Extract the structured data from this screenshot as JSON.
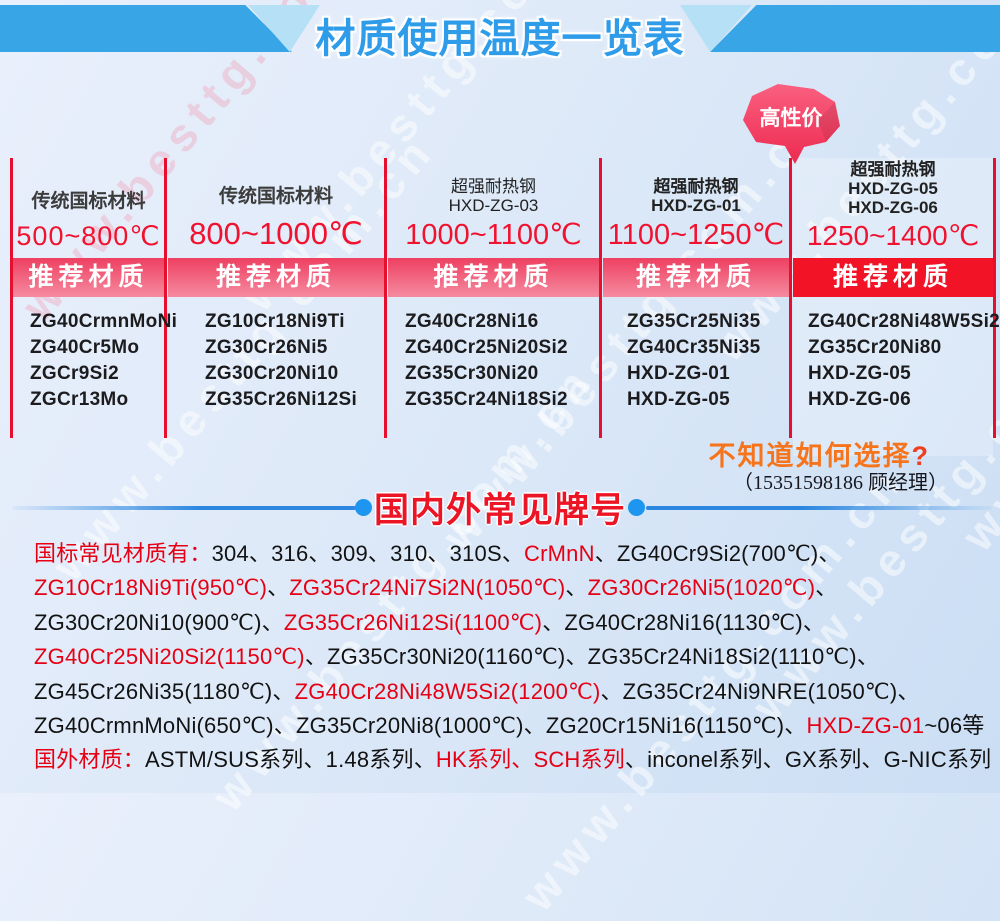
{
  "watermark": {
    "text": "www.besttg.com.cn"
  },
  "header": {
    "title": "材质使用温度一览表"
  },
  "badge": {
    "label": "高性价"
  },
  "table": {
    "band_label": "推荐材质",
    "columns": [
      {
        "titles": [
          "传统国标材料"
        ],
        "temp": "500~800℃",
        "materials": [
          "ZG40CrmnMoNi",
          "ZG40Cr5Mo",
          "ZGCr9Si2",
          "ZGCr13Mo"
        ]
      },
      {
        "titles": [
          "传统国标材料"
        ],
        "temp": "800~1000℃",
        "materials": [
          "ZG10Cr18Ni9Ti",
          "ZG30Cr26Ni5",
          "ZG30Cr20Ni10",
          "ZG35Cr26Ni12Si"
        ]
      },
      {
        "titles": [
          "超强耐热钢",
          "HXD-ZG-03"
        ],
        "temp": "1000~1100℃",
        "materials": [
          "ZG40Cr28Ni16",
          "ZG40Cr25Ni20Si2",
          "ZG35Cr30Ni20",
          "ZG35Cr24Ni18Si2"
        ]
      },
      {
        "titles": [
          "超强耐热钢",
          "HXD-ZG-01"
        ],
        "temp": "1100~1250℃",
        "materials": [
          "ZG35Cr25Ni35",
          "ZG40Cr35Ni35",
          "HXD-ZG-01",
          "HXD-ZG-05"
        ]
      },
      {
        "titles": [
          "超强耐热钢",
          "HXD-ZG-05",
          "HXD-ZG-06"
        ],
        "temp": "1250~1400℃",
        "materials": [
          "ZG40Cr28Ni48W5Si2",
          "ZG35Cr20Ni80",
          "HXD-ZG-05",
          "HXD-ZG-06"
        ]
      }
    ]
  },
  "help": {
    "question": "不知道如何选择",
    "qmark": "?",
    "contact": "（15351598186 顾经理）"
  },
  "section": {
    "title": "国内外常见牌号"
  },
  "grades_lines": [
    [
      {
        "text": "国标常见材质有：",
        "color": "red"
      },
      {
        "text": "304、316、309、310、310S、",
        "color": "black"
      },
      {
        "text": "CrMnN",
        "color": "red"
      },
      {
        "text": "、ZG40Cr9Si2(700℃)、",
        "color": "black"
      }
    ],
    [
      {
        "text": "ZG10Cr18Ni9Ti(950℃)",
        "color": "red"
      },
      {
        "text": "、",
        "color": "black"
      },
      {
        "text": "ZG35Cr24Ni7Si2N(1050℃)",
        "color": "red"
      },
      {
        "text": "、",
        "color": "black"
      },
      {
        "text": "ZG30Cr26Ni5(1020℃)",
        "color": "red"
      },
      {
        "text": "、",
        "color": "black"
      }
    ],
    [
      {
        "text": "ZG30Cr20Ni10(900℃)、",
        "color": "black"
      },
      {
        "text": "ZG35Cr26Ni12Si(1100℃)",
        "color": "red"
      },
      {
        "text": "、ZG40Cr28Ni16(1130℃)、",
        "color": "black"
      }
    ],
    [
      {
        "text": "ZG40Cr25Ni20Si2(1150℃)",
        "color": "red"
      },
      {
        "text": "、ZG35Cr30Ni20(1160℃)、ZG35Cr24Ni18Si2(1110℃)、",
        "color": "black"
      }
    ],
    [
      {
        "text": "ZG45Cr26Ni35(1180℃)、",
        "color": "black"
      },
      {
        "text": "ZG40Cr28Ni48W5Si2(1200℃)",
        "color": "red"
      },
      {
        "text": "、ZG35Cr24Ni9NRE(1050℃)、",
        "color": "black"
      }
    ],
    [
      {
        "text": "ZG40CrmnMoNi(650℃)、ZG35Cr20Ni8(1000℃)、ZG20Cr15Ni16(1150℃)、",
        "color": "black"
      },
      {
        "text": "HXD-ZG-01",
        "color": "red"
      },
      {
        "text": "~06等",
        "color": "black"
      }
    ],
    [
      {
        "text": "国外材质：",
        "color": "red"
      },
      {
        "text": "ASTM/SUS系列、1.48系列、",
        "color": "black"
      },
      {
        "text": "HK系列、SCH系列",
        "color": "red"
      },
      {
        "text": "、inconel系列、GX系列、G-NIC系列",
        "color": "black"
      }
    ]
  ],
  "colors": {
    "banner_blue": "#38a6e6",
    "banner_light_blue": "#b5e0f5",
    "title_blue": "#2e9ce9",
    "divider_red": "#e60f2d",
    "temp_red": "#f0122f",
    "band_rose": "#ee4061",
    "band_solid_red": "#f31326",
    "badge_red": "#ee2950",
    "help_orange": "#f5741c",
    "section_red": "#ec1526",
    "text_red": "#e60014",
    "line_blue": "#2b87e0"
  }
}
